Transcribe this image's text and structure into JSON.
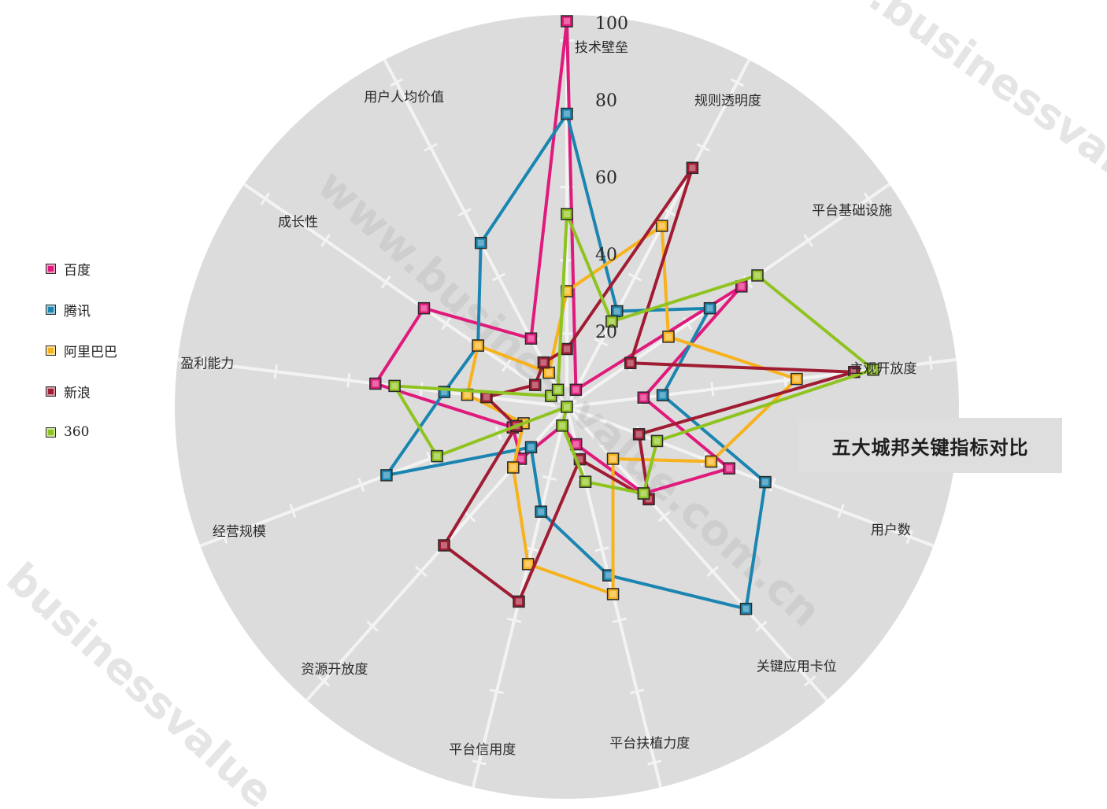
{
  "chart_data": {
    "type": "radar",
    "title": "五大城邦关键指标对比",
    "axes": [
      "技术壁垒",
      "规则透明度",
      "平台基础设施",
      "主观开放度",
      "用户数",
      "关键应用卡位",
      "平台扶植力度",
      "平台信用度",
      "资源开放度",
      "经营规模",
      "盈利能力",
      "成长性",
      "用户人均价值"
    ],
    "radial_ticks": [
      20,
      40,
      60,
      80,
      100
    ],
    "rmax": 100,
    "legend_position": "left",
    "series": [
      {
        "name": "百度",
        "color": "#e0197c",
        "values": [
          100,
          5,
          55,
          20,
          45,
          30,
          10,
          5,
          18,
          15,
          50,
          45,
          20
        ]
      },
      {
        "name": "腾讯",
        "color": "#1a85b0",
        "values": [
          76,
          28,
          45,
          25,
          55,
          70,
          45,
          28,
          14,
          50,
          32,
          28,
          48
        ]
      },
      {
        "name": "阿里巴巴",
        "color": "#f7b21c",
        "values": [
          30,
          53,
          32,
          60,
          40,
          18,
          50,
          42,
          21,
          12,
          26,
          28,
          10
        ]
      },
      {
        "name": "新浪",
        "color": "#a01c33",
        "values": [
          15,
          70,
          20,
          75,
          20,
          32,
          14,
          52,
          48,
          14,
          21,
          10,
          13
        ]
      },
      {
        "name": "360",
        "color": "#8fc31f",
        "values": [
          50,
          25,
          60,
          80,
          25,
          30,
          20,
          5,
          0,
          36,
          45,
          5,
          5
        ]
      }
    ]
  },
  "legend": {
    "items": [
      {
        "label": "百度",
        "color": "#e0197c"
      },
      {
        "label": "腾讯",
        "color": "#1a85b0"
      },
      {
        "label": "阿里巴巴",
        "color": "#f7b21c"
      },
      {
        "label": "新浪",
        "color": "#a01c33"
      },
      {
        "label": "360",
        "color": "#8fc31f"
      }
    ]
  },
  "title_box": {
    "text": "五大城邦关键指标对比"
  },
  "watermarks": [
    "www.businessvalue.com.cn",
    ".businessvalue.",
    "businessvalue"
  ]
}
